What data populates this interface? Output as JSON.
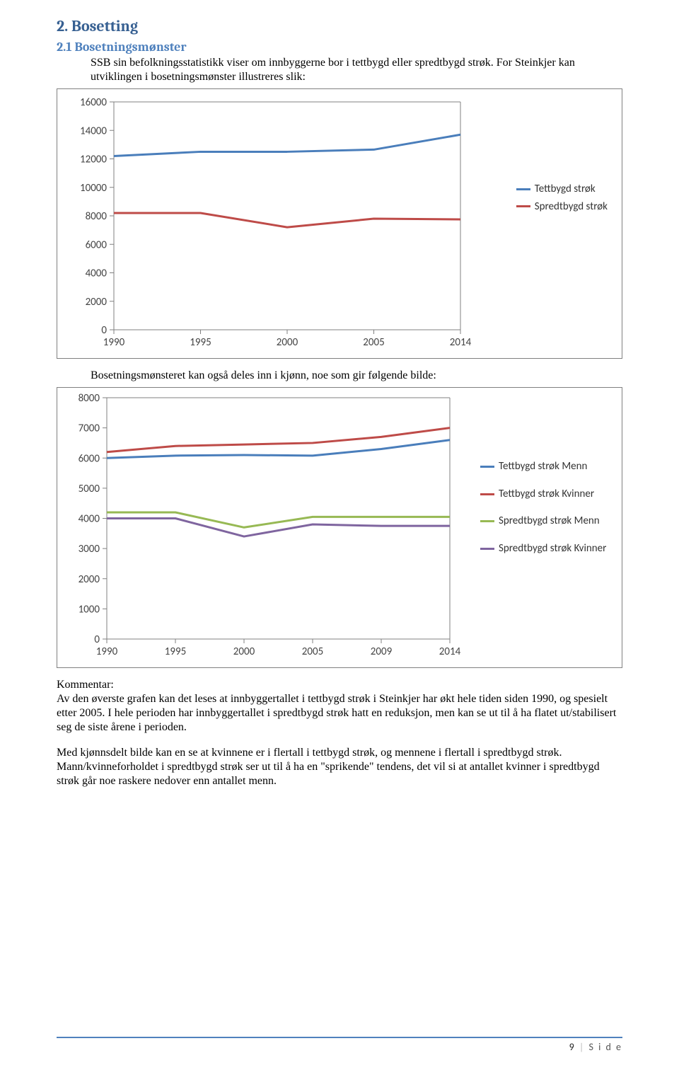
{
  "section": {
    "title": "2. Bosetting"
  },
  "subsection": {
    "title": "2.1 Bosetningsmønster"
  },
  "intro1": "SSB sin befolkningsstatistikk viser om innbyggerne bor i tettbygd eller spredtbygd strøk. For Steinkjer kan utviklingen i bosetningsmønster illustreres slik:",
  "chart1": {
    "type": "line",
    "categories": [
      "1990",
      "1995",
      "2000",
      "2005",
      "2014"
    ],
    "series": [
      {
        "name": "Tettbygd strøk",
        "color": "#4a7ebb",
        "values": [
          12200,
          12500,
          12500,
          12650,
          13700
        ]
      },
      {
        "name": "Spredtbygd strøk",
        "color": "#be4b48",
        "values": [
          8200,
          8200,
          7200,
          7800,
          7750
        ]
      }
    ],
    "ylim": [
      0,
      16000
    ],
    "ytick_step": 2000,
    "axis_font_size": 15,
    "line_width": 3,
    "border_color": "#808080",
    "plot_border_color": "#808080",
    "grid_color": "#d9d9d9",
    "background": "#ffffff",
    "legend_pos": "right"
  },
  "mid_text": "Bosetningsmønsteret kan også deles inn i kjønn, noe som gir følgende bilde:",
  "chart2": {
    "type": "line",
    "categories": [
      "1990",
      "1995",
      "2000",
      "2005",
      "2009",
      "2014"
    ],
    "series": [
      {
        "name": "Tettbygd strøk Menn",
        "color": "#4a7ebb",
        "values": [
          6000,
          6080,
          6100,
          6080,
          6300,
          6600
        ]
      },
      {
        "name": "Tettbygd strøk Kvinner",
        "color": "#be4b48",
        "values": [
          6200,
          6400,
          6450,
          6500,
          6700,
          7000
        ]
      },
      {
        "name": "Spredtbygd strøk Menn",
        "color": "#97b954",
        "values": [
          4200,
          4200,
          3700,
          4050,
          4050,
          4050
        ]
      },
      {
        "name": "Spredtbygd strøk Kvinner",
        "color": "#7f659f",
        "values": [
          4000,
          4000,
          3400,
          3800,
          3750,
          3750
        ]
      }
    ],
    "ylim": [
      0,
      8000
    ],
    "ytick_step": 1000,
    "axis_font_size": 15,
    "line_width": 3,
    "border_color": "#808080",
    "plot_border_color": "#808080",
    "grid_color": "#d9d9d9",
    "background": "#ffffff",
    "legend_pos": "right"
  },
  "kommentar_heading": "Kommentar:",
  "kommentar_p1": "Av den øverste grafen kan det leses at innbyggertallet i tettbygd strøk i Steinkjer har økt hele tiden siden 1990, og spesielt etter 2005. I hele perioden har innbyggertallet i spredtbygd strøk hatt en reduksjon, men kan se ut til å ha flatet ut/stabilisert seg de siste årene i perioden.",
  "kommentar_p2": "Med kjønnsdelt bilde kan en se at kvinnene er i flertall i tettbygd strøk, og mennene i flertall i spredtbygd strøk. Mann/kvinneforholdet i spredtbygd strøk ser ut til å ha en \"sprikende\" tendens, det vil si at antallet kvinner i spredtbygd strøk går noe raskere nedover enn antallet menn.",
  "footer": {
    "page": "9",
    "label": "S i d e"
  }
}
